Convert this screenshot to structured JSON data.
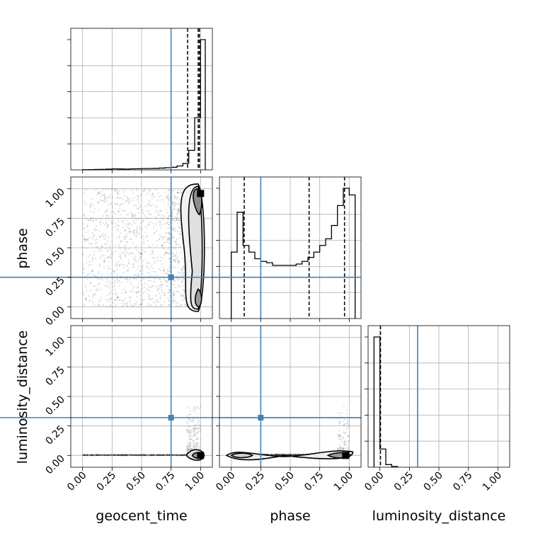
{
  "chart_data": {
    "type": "scatter",
    "parameters": [
      "geocent_time",
      "phase",
      "luminosity_distance"
    ],
    "axis_labels": {
      "geocent_time": "geocent_time",
      "phase": "phase",
      "luminosity_distance": "luminosity_distance"
    },
    "ticks": [
      "0.00",
      "0.25",
      "0.50",
      "0.75",
      "1.00"
    ],
    "tick_values": [
      0,
      0.25,
      0.5,
      0.75,
      1.0
    ],
    "axis_range": [
      -0.1,
      1.1
    ],
    "grid": true,
    "truth_color": "#4682b4",
    "truths": {
      "geocent_time": 0.75,
      "phase": 0.25,
      "luminosity_distance": 0.32
    },
    "quantiles": {
      "geocent_time": [
        0.89,
        0.98,
        0.99
      ],
      "phase": [
        0.11,
        0.66,
        0.96
      ],
      "luminosity_distance": [
        0.005
      ]
    },
    "histograms": {
      "geocent_time": {
        "edges": [
          0.0,
          0.05,
          0.1,
          0.15,
          0.2,
          0.25,
          0.3,
          0.35,
          0.4,
          0.45,
          0.5,
          0.55,
          0.6,
          0.65,
          0.7,
          0.75,
          0.8,
          0.85,
          0.9,
          0.95,
          1.0,
          1.04
        ],
        "counts": [
          0.001,
          0.002,
          0.003,
          0.004,
          0.006,
          0.008,
          0.007,
          0.006,
          0.008,
          0.009,
          0.01,
          0.011,
          0.012,
          0.014,
          0.017,
          0.02,
          0.03,
          0.05,
          0.15,
          0.4,
          1.0
        ]
      },
      "phase": {
        "edges": [
          0.0,
          0.05,
          0.1,
          0.15,
          0.2,
          0.25,
          0.3,
          0.35,
          0.4,
          0.45,
          0.5,
          0.55,
          0.6,
          0.65,
          0.7,
          0.75,
          0.8,
          0.85,
          0.9,
          0.95,
          1.0,
          1.05
        ],
        "counts": [
          0.5,
          0.8,
          0.55,
          0.5,
          0.45,
          0.43,
          0.42,
          0.4,
          0.4,
          0.4,
          0.4,
          0.41,
          0.43,
          0.46,
          0.5,
          0.55,
          0.6,
          0.7,
          0.85,
          0.98,
          0.93
        ]
      },
      "luminosity_distance": {
        "edges": [
          -0.05,
          0.0,
          0.05,
          0.1,
          0.15
        ],
        "counts": [
          1.0,
          0.14,
          0.02,
          0.005
        ]
      }
    }
  }
}
